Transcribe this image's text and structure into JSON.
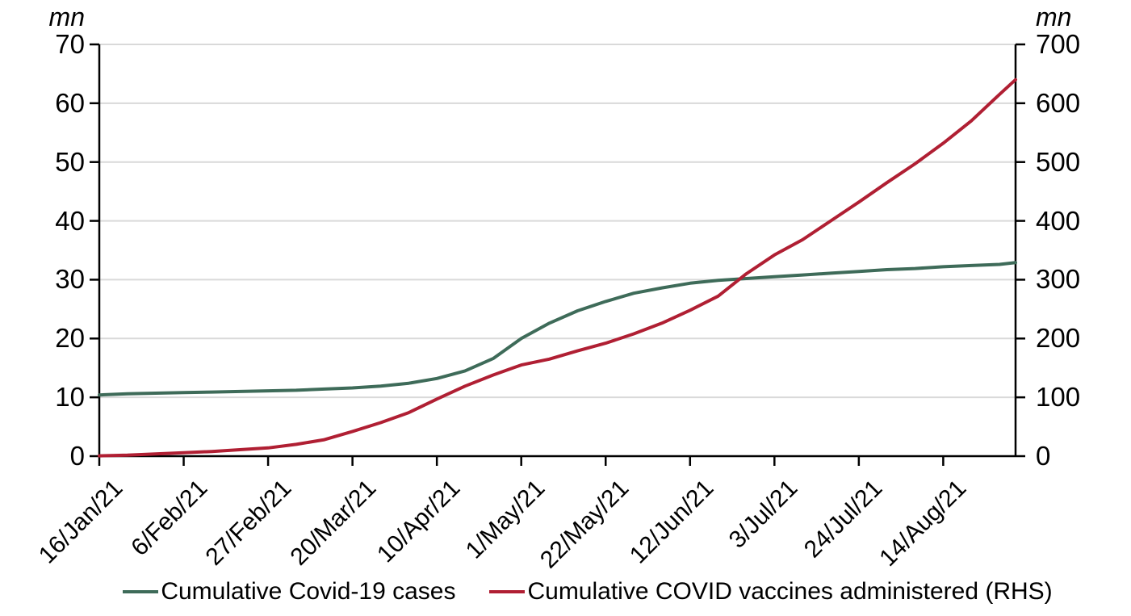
{
  "chart_data": {
    "type": "line",
    "title": "",
    "left_axis": {
      "unit": "mn",
      "min": 0,
      "max": 70,
      "ticks": [
        70,
        60,
        50,
        40,
        30,
        20,
        10,
        0
      ]
    },
    "right_axis": {
      "unit": "mn",
      "min": 0,
      "max": 700,
      "ticks": [
        700,
        600,
        500,
        400,
        300,
        200,
        100,
        0
      ]
    },
    "x_axis": {
      "tick_labels": [
        "16/Jan/21",
        "6/Feb/21",
        "27/Feb/21",
        "20/Mar/21",
        "10/Apr/21",
        "1/May/21",
        "22/May/21",
        "12/Jun/21",
        "3/Jul/21",
        "24/Jul/21",
        "14/Aug/21"
      ],
      "tick_interval_days": 21,
      "range_days": 228
    },
    "grid": {
      "horizontal": true,
      "color": "#d9d9d9"
    },
    "legend_position": "bottom",
    "x_days": [
      0,
      7,
      14,
      21,
      28,
      35,
      42,
      49,
      56,
      63,
      70,
      77,
      84,
      91,
      98,
      105,
      112,
      119,
      126,
      133,
      140,
      147,
      154,
      161,
      168,
      175,
      182,
      189,
      196,
      203,
      210,
      217,
      224,
      228
    ],
    "dates": [
      "16/Jan/21",
      "23/Jan/21",
      "30/Jan/21",
      "6/Feb/21",
      "13/Feb/21",
      "20/Feb/21",
      "27/Feb/21",
      "6/Mar/21",
      "13/Mar/21",
      "20/Mar/21",
      "27/Mar/21",
      "3/Apr/21",
      "10/Apr/21",
      "17/Apr/21",
      "24/Apr/21",
      "1/May/21",
      "8/May/21",
      "15/May/21",
      "22/May/21",
      "29/May/21",
      "5/Jun/21",
      "12/Jun/21",
      "19/Jun/21",
      "26/Jun/21",
      "3/Jul/21",
      "10/Jul/21",
      "17/Jul/21",
      "24/Jul/21",
      "31/Jul/21",
      "7/Aug/21",
      "14/Aug/21",
      "21/Aug/21",
      "28/Aug/21",
      "31/Aug/21"
    ],
    "series": [
      {
        "name": "Cumulative Covid-19 cases",
        "axis": "left",
        "color": "#3e6b59",
        "values": [
          10.4,
          10.6,
          10.7,
          10.8,
          10.9,
          11.0,
          11.1,
          11.2,
          11.4,
          11.6,
          11.9,
          12.4,
          13.2,
          14.5,
          16.6,
          20.0,
          22.6,
          24.7,
          26.3,
          27.7,
          28.6,
          29.4,
          29.9,
          30.2,
          30.5,
          30.8,
          31.1,
          31.4,
          31.7,
          31.9,
          32.2,
          32.4,
          32.6,
          32.9
        ]
      },
      {
        "name": "Cumulative COVID vaccines administered (RHS)",
        "axis": "right",
        "color": "#b01f33",
        "values": [
          0.5,
          1.6,
          3.8,
          5.8,
          8.0,
          11,
          14,
          20,
          28,
          42,
          57,
          74,
          97,
          119,
          138,
          155,
          165,
          179,
          192,
          208,
          226,
          248,
          272,
          310,
          342,
          368,
          400,
          432,
          465,
          497,
          532,
          570,
          615,
          640
        ]
      }
    ]
  }
}
